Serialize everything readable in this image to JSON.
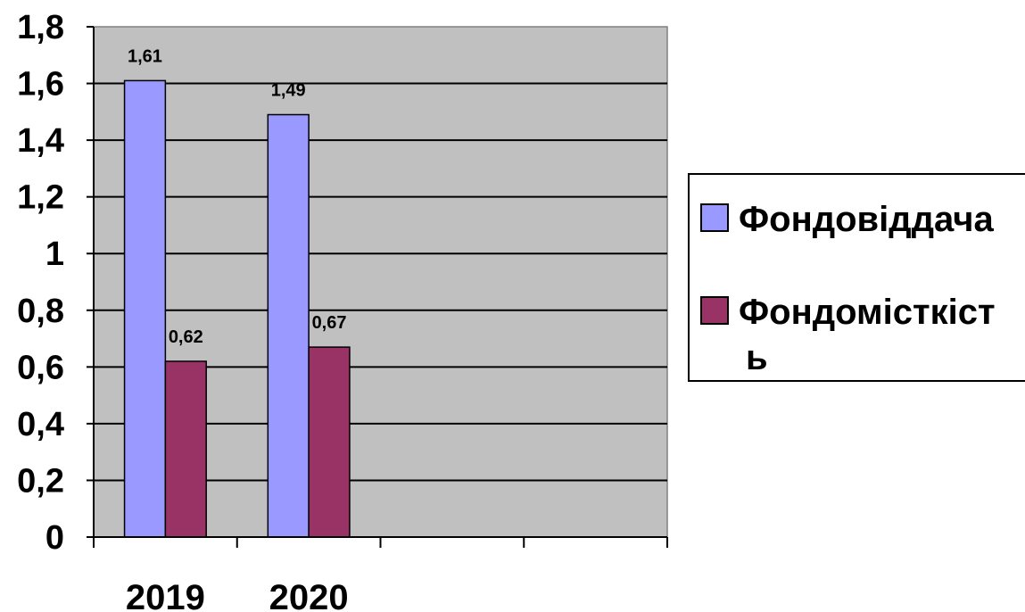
{
  "chart_data": {
    "type": "bar",
    "categories": [
      "2019",
      "2020",
      "",
      ""
    ],
    "series": [
      {
        "name": "Фондовіддача",
        "values": [
          1.61,
          1.49,
          null,
          null
        ],
        "color": "#9999ff"
      },
      {
        "name": "Фондомісткість",
        "legend_lines": [
          "Фондомісткіст",
          "ь"
        ],
        "values": [
          0.62,
          0.67,
          null,
          null
        ],
        "color": "#993366"
      }
    ],
    "data_labels": [
      [
        "1,61",
        "1,49"
      ],
      [
        "0,62",
        "0,67"
      ]
    ],
    "y_ticks": [
      "0",
      "0,2",
      "0,4",
      "0,6",
      "0,8",
      "1",
      "1,2",
      "1,4",
      "1,6",
      "1,8"
    ],
    "ylim": [
      0,
      1.8
    ],
    "plot_background": "#c0c0c0",
    "grid": true,
    "legend_position": "right"
  }
}
